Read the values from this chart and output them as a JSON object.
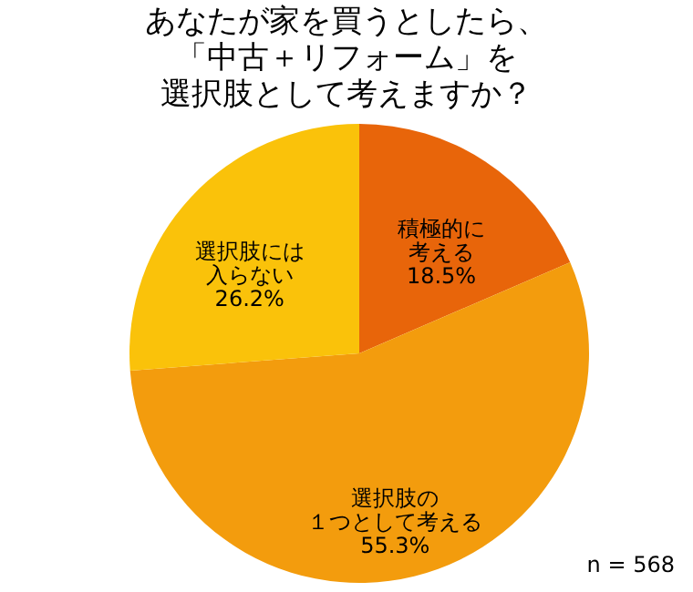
{
  "chart_data": {
    "type": "pie",
    "title": "あなたが家を買うとしたら、「中古＋リフォーム」を選択肢として考えますか？",
    "categories": [
      "積極的に考える",
      "選択肢の１つとして考える",
      "選択肢には入らない"
    ],
    "values": [
      18.5,
      55.3,
      26.2
    ],
    "colors": [
      "#e8650a",
      "#f39c0d",
      "#fac20a"
    ],
    "value_labels": [
      "18.5%",
      "55.3%",
      "26.2%"
    ],
    "annotations": [
      "n = 568"
    ]
  }
}
